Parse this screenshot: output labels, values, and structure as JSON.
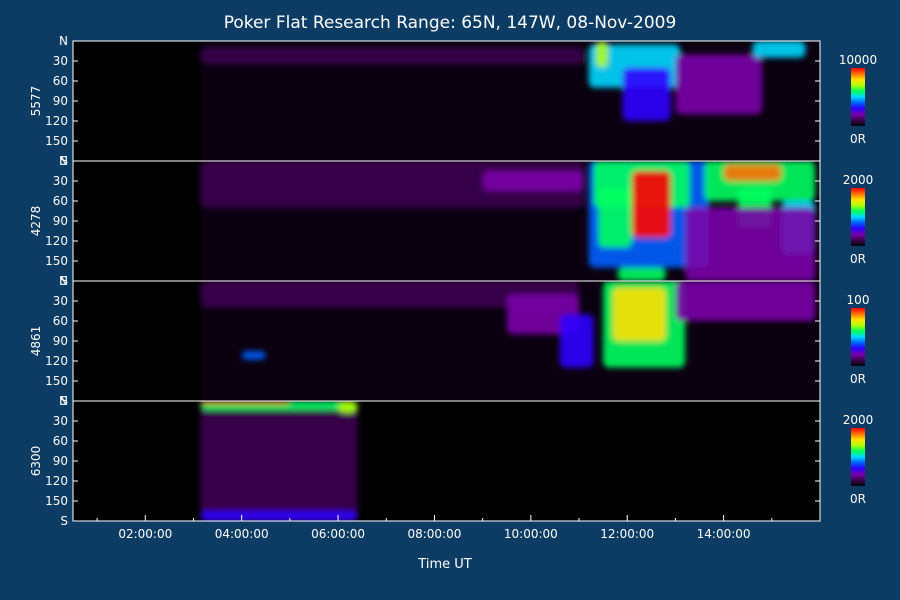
{
  "chart_data": {
    "type": "heatmap",
    "title": "Poker Flat Research Range: 65N, 147W, 08-Nov-2009",
    "xlabel": "Time UT",
    "x_tick_labels": [
      "02:00:00",
      "04:00:00",
      "06:00:00",
      "08:00:00",
      "10:00:00",
      "12:00:00",
      "14:00:00"
    ],
    "x_tick_hours": [
      2,
      4,
      6,
      8,
      10,
      12,
      14
    ],
    "x_range_hours": [
      0.5,
      16.0
    ],
    "y_tick_labels": [
      "N",
      "30",
      "60",
      "90",
      "120",
      "150",
      "S"
    ],
    "y_tick_values": [
      0,
      30,
      60,
      90,
      120,
      150,
      180
    ],
    "y_range": [
      0,
      180
    ],
    "colorscale": [
      "#000000",
      "#3b0050",
      "#7a00a8",
      "#2d00ff",
      "#0060ff",
      "#00d8ff",
      "#00ff60",
      "#b0ff00",
      "#ffe000",
      "#ff7000",
      "#ff0000"
    ],
    "panels": [
      {
        "label": "5577",
        "colorbar_max": "10000",
        "colorbar_min": "0R",
        "data_start_hour": 3.15,
        "blobs": [
          {
            "t0": 3.15,
            "t1": 11.1,
            "zen0": 10,
            "zen1": 35,
            "level": 0.07
          },
          {
            "t0": 11.2,
            "t1": 13.1,
            "zen0": 5,
            "zen1": 70,
            "level": 0.45
          },
          {
            "t0": 11.35,
            "t1": 11.6,
            "zen0": 0,
            "zen1": 40,
            "level": 0.65
          },
          {
            "t0": 11.9,
            "t1": 12.9,
            "zen0": 40,
            "zen1": 120,
            "level": 0.28
          },
          {
            "t0": 13.0,
            "t1": 14.8,
            "zen0": 20,
            "zen1": 110,
            "level": 0.18
          },
          {
            "t0": 14.6,
            "t1": 15.7,
            "zen0": 0,
            "zen1": 25,
            "level": 0.5
          }
        ]
      },
      {
        "label": "4278",
        "colorbar_max": "2000",
        "colorbar_min": "0R",
        "data_start_hour": 3.15,
        "blobs": [
          {
            "t0": 3.15,
            "t1": 11.1,
            "zen0": 0,
            "zen1": 70,
            "level": 0.08
          },
          {
            "t0": 9.0,
            "t1": 11.1,
            "zen0": 15,
            "zen1": 45,
            "level": 0.16
          },
          {
            "t0": 11.2,
            "t1": 13.7,
            "zen0": 0,
            "zen1": 160,
            "level": 0.4
          },
          {
            "t0": 11.3,
            "t1": 13.3,
            "zen0": 0,
            "zen1": 70,
            "level": 0.6
          },
          {
            "t0": 12.1,
            "t1": 12.9,
            "zen0": 15,
            "zen1": 115,
            "level": 0.95
          },
          {
            "t0": 11.4,
            "t1": 12.1,
            "zen0": 40,
            "zen1": 130,
            "level": 0.62
          },
          {
            "t0": 11.8,
            "t1": 12.8,
            "zen0": 160,
            "zen1": 180,
            "level": 0.55
          },
          {
            "t0": 13.6,
            "t1": 15.9,
            "zen0": 0,
            "zen1": 60,
            "level": 0.55
          },
          {
            "t0": 14.0,
            "t1": 15.2,
            "zen0": 5,
            "zen1": 30,
            "level": 0.9
          },
          {
            "t0": 14.3,
            "t1": 15.0,
            "zen0": 40,
            "zen1": 100,
            "level": 0.55
          },
          {
            "t0": 15.2,
            "t1": 15.9,
            "zen0": 60,
            "zen1": 140,
            "level": 0.45
          },
          {
            "t0": 13.2,
            "t1": 15.9,
            "zen0": 70,
            "zen1": 180,
            "level": 0.2
          }
        ]
      },
      {
        "label": "4861",
        "colorbar_max": "100",
        "colorbar_min": "0R",
        "data_start_hour": 3.15,
        "blobs": [
          {
            "t0": 3.15,
            "t1": 11.0,
            "zen0": 0,
            "zen1": 40,
            "level": 0.08
          },
          {
            "t0": 9.5,
            "t1": 11.0,
            "zen0": 20,
            "zen1": 80,
            "level": 0.2
          },
          {
            "t0": 10.6,
            "t1": 11.3,
            "zen0": 50,
            "zen1": 130,
            "level": 0.28
          },
          {
            "t0": 11.5,
            "t1": 13.2,
            "zen0": 0,
            "zen1": 130,
            "level": 0.55
          },
          {
            "t0": 11.7,
            "t1": 12.8,
            "zen0": 10,
            "zen1": 90,
            "level": 0.82
          },
          {
            "t0": 4.0,
            "t1": 4.5,
            "zen0": 105,
            "zen1": 118,
            "level": 0.4
          },
          {
            "t0": 13.0,
            "t1": 15.9,
            "zen0": 0,
            "zen1": 60,
            "level": 0.18
          }
        ]
      },
      {
        "label": "6300",
        "colorbar_max": "2000",
        "colorbar_min": "0R",
        "data_start_hour": 3.15,
        "data_end_hour": 6.4,
        "blobs": [
          {
            "t0": 3.15,
            "t1": 6.4,
            "zen0": 0,
            "zen1": 180,
            "level": 0.12
          },
          {
            "t0": 3.15,
            "t1": 6.4,
            "zen0": 0,
            "zen1": 14,
            "level": 0.6
          },
          {
            "t0": 3.15,
            "t1": 5.0,
            "zen0": 0,
            "zen1": 5,
            "level": 0.85
          },
          {
            "t0": 6.0,
            "t1": 6.4,
            "zen0": 0,
            "zen1": 18,
            "level": 0.7
          },
          {
            "t0": 3.15,
            "t1": 6.4,
            "zen0": 165,
            "zen1": 180,
            "level": 0.3
          }
        ]
      }
    ]
  }
}
